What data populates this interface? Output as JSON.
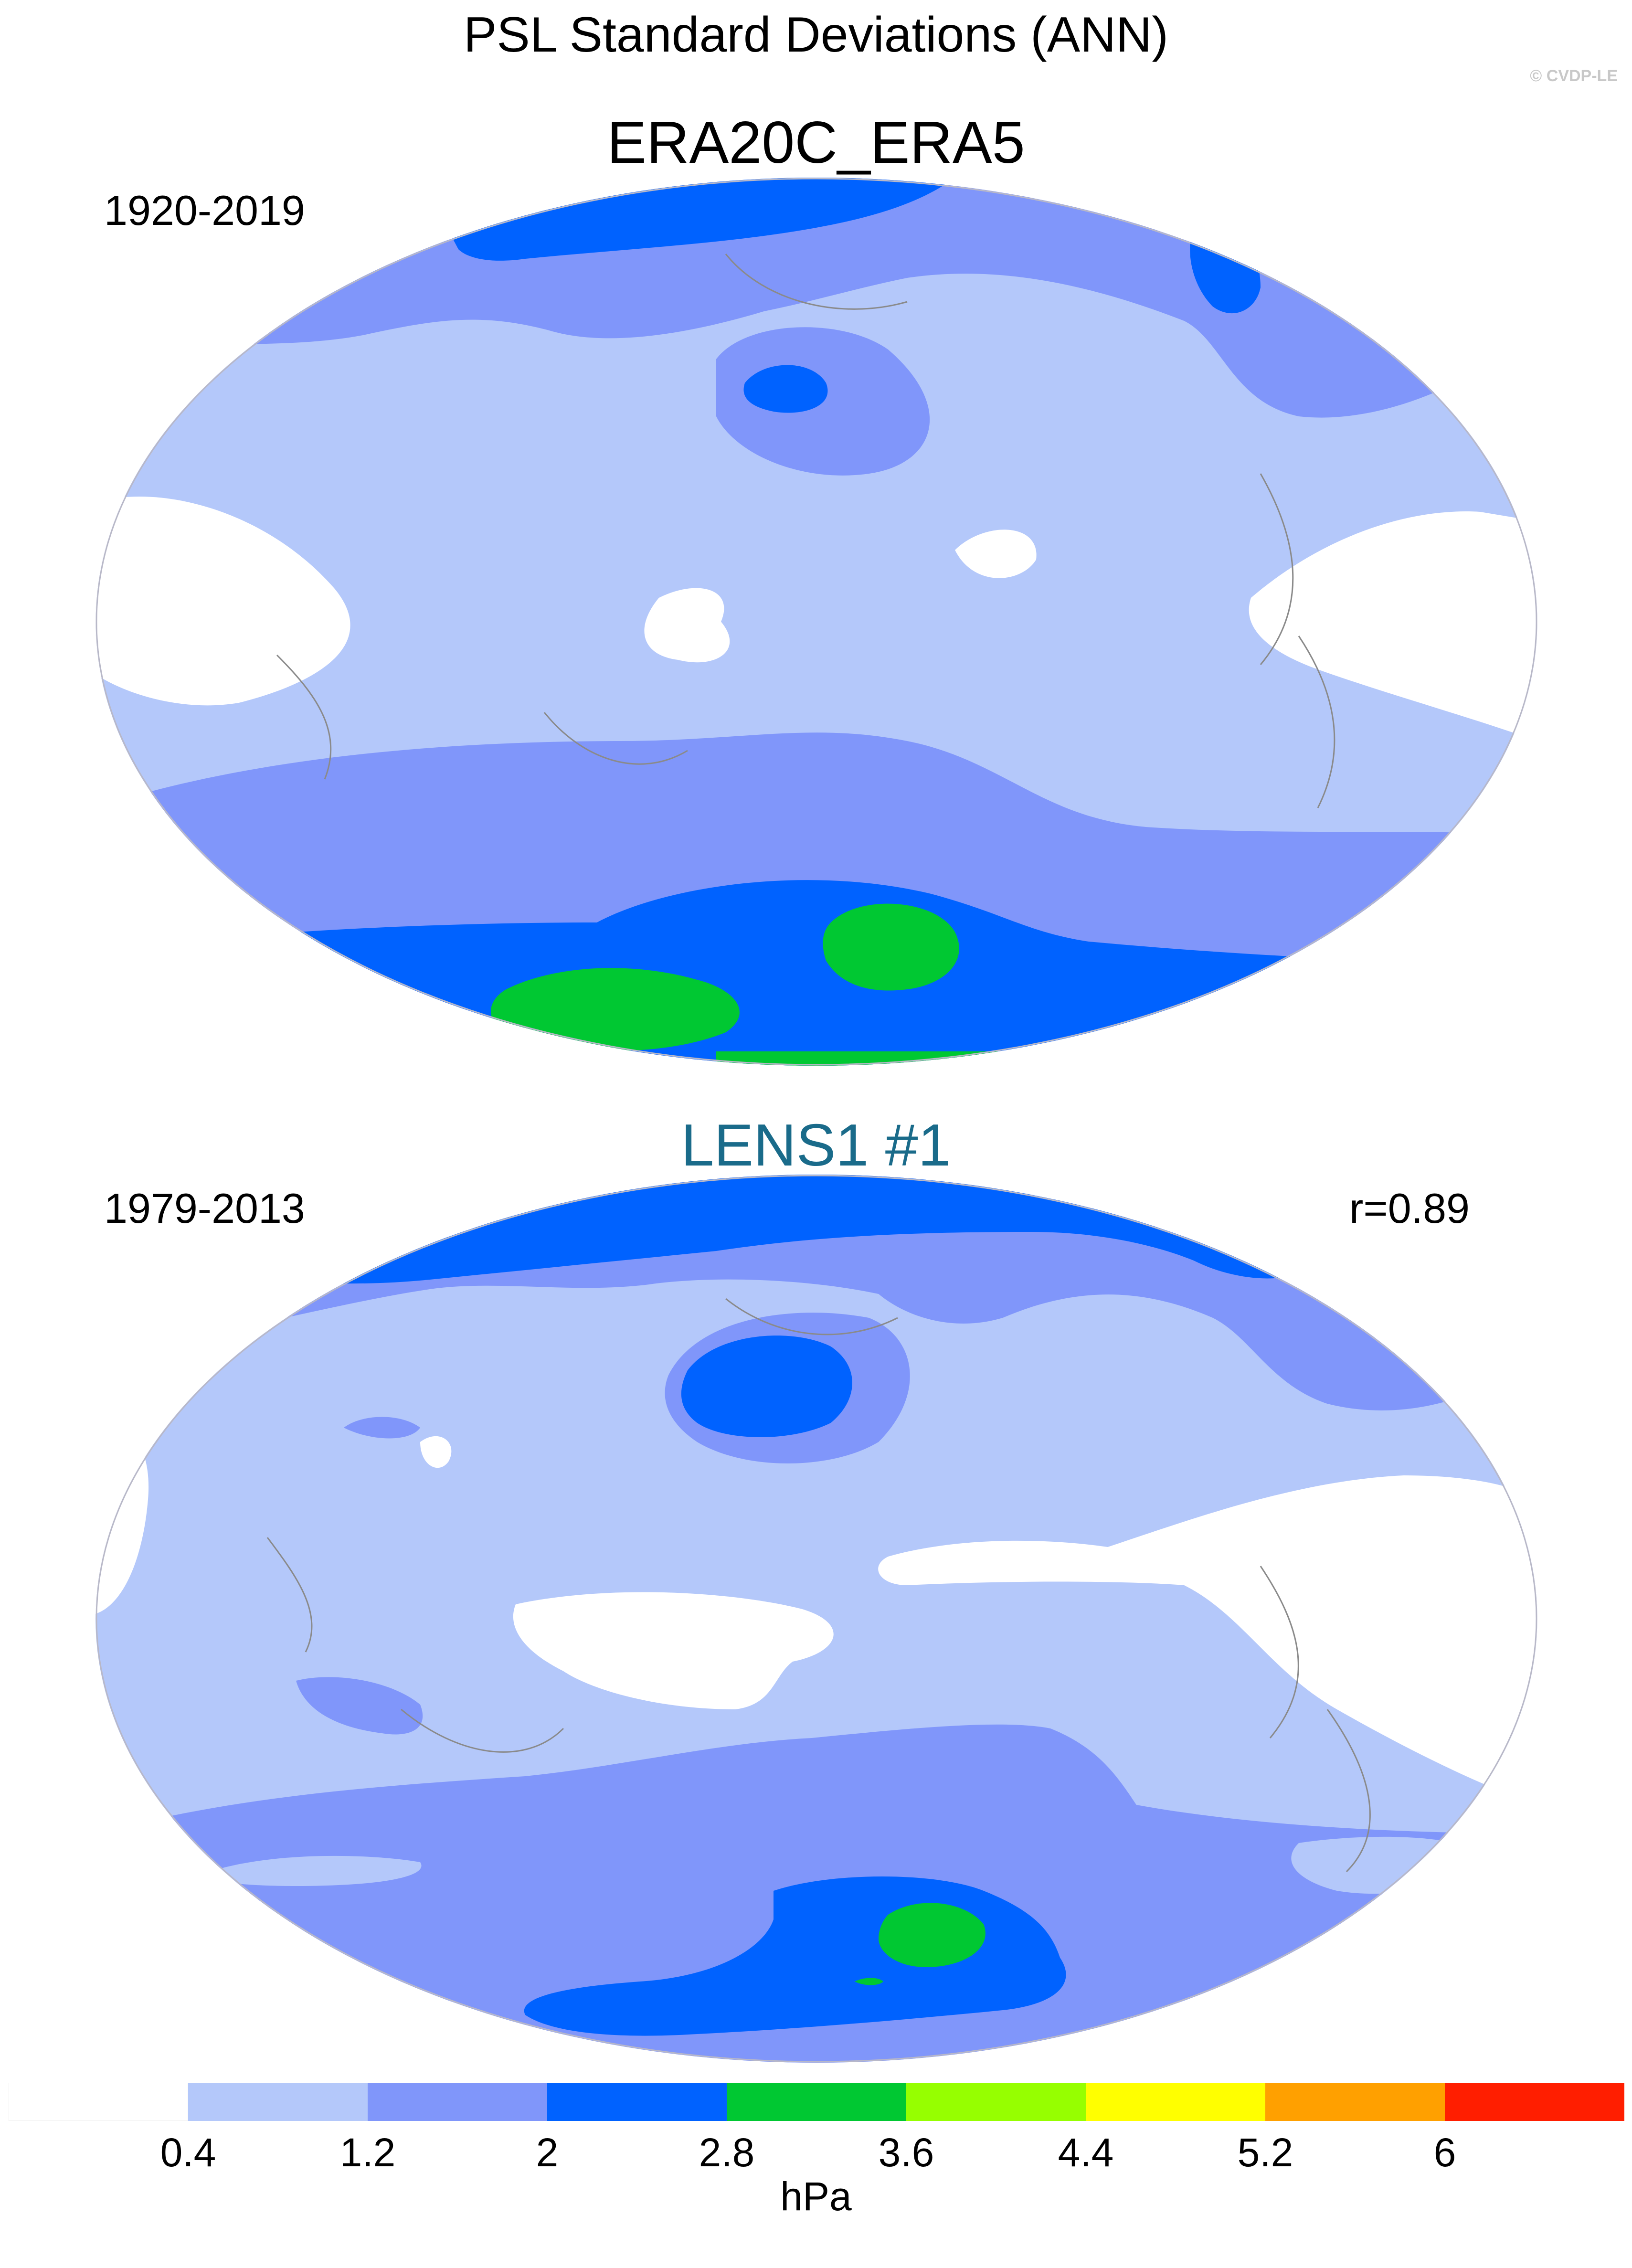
{
  "title": "PSL Standard Deviations (ANN)",
  "copyright": "© CVDP-LE",
  "panels": [
    {
      "title": "ERA20C_ERA5",
      "title_color": "#000000",
      "period": "1920-2019",
      "stat": ""
    },
    {
      "title": "LENS1 #1",
      "title_color": "#1a6b8a",
      "period": "1979-2013",
      "stat": "r=0.89"
    }
  ],
  "colorbar": {
    "units": "hPa",
    "colors": [
      "#ffffff",
      "#b4c8fa",
      "#8096fa",
      "#0062ff",
      "#00c832",
      "#96ff00",
      "#ffff00",
      "#ffa000",
      "#ff1e00"
    ],
    "ticks": [
      "0.4",
      "1.2",
      "2",
      "2.8",
      "3.6",
      "4.4",
      "5.2",
      "6"
    ]
  }
}
